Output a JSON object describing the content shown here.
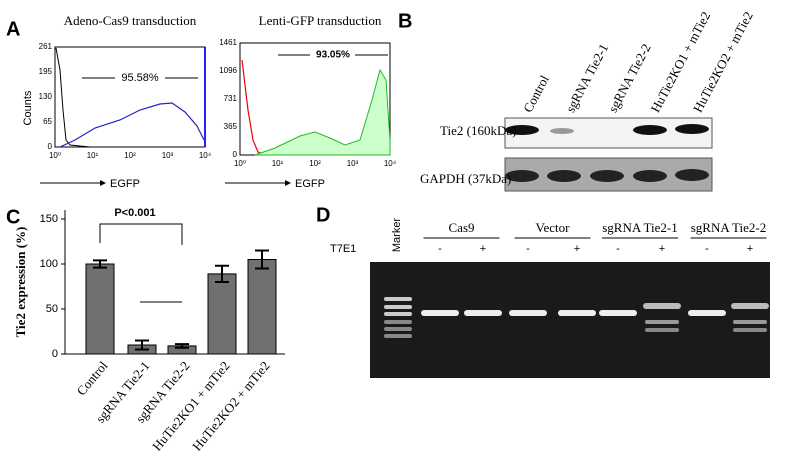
{
  "panel_labels": [
    "A",
    "B",
    "C",
    "D"
  ],
  "flow": [
    {
      "title": "Adeno-Cas9 transduction",
      "gate_label": "95.58%",
      "ylabel": "Counts",
      "xlabel": "EGFP",
      "yticks": [
        "261",
        "195",
        "130",
        "65",
        "0"
      ],
      "xticks": [
        "10⁰",
        "10¹",
        "10²",
        "10³",
        "10⁴"
      ]
    },
    {
      "title": "Lenti-GFP transduction",
      "gate_label": "93.05%",
      "xlabel": "EGFP",
      "yticks": [
        "1461",
        "1096",
        "731",
        "365",
        "0"
      ],
      "xticks": [
        "10⁰",
        "10¹",
        "10²",
        "10³",
        "10⁴"
      ]
    }
  ],
  "western": {
    "lanes": [
      "Control",
      "sgRNA Tie2-1",
      "sgRNA Tie2-2",
      "HuTie2KO1 + mTie2",
      "HuTie2KO2 + mTie2"
    ],
    "rows": [
      "Tie2 (160kDa)",
      "GAPDH (37kDa)"
    ]
  },
  "chart_data": {
    "type": "bar",
    "ylabel": "Tie2 expression (%)",
    "categories": [
      "Control",
      "sgRNA Tie2-1",
      "sgRNA Tie2-2",
      "HuTie2KO1 + mTie2",
      "HuTie2KO2 + mTie2"
    ],
    "values": [
      100,
      10,
      9,
      89,
      105
    ],
    "errors": [
      4,
      5,
      2,
      9,
      10
    ],
    "color": "#707070",
    "ylim": [
      0,
      160
    ],
    "yticks": [
      0,
      50,
      100,
      150
    ],
    "annotation": "P<0.001"
  },
  "gel": {
    "marker": "Marker",
    "groups": [
      "Cas9",
      "Vector",
      "sgRNA Tie2-1",
      "sgRNA Tie2-2"
    ],
    "treatment": "T7E1",
    "signs": [
      "-",
      "+",
      "-",
      "+",
      "-",
      "+",
      "-",
      "+"
    ]
  }
}
